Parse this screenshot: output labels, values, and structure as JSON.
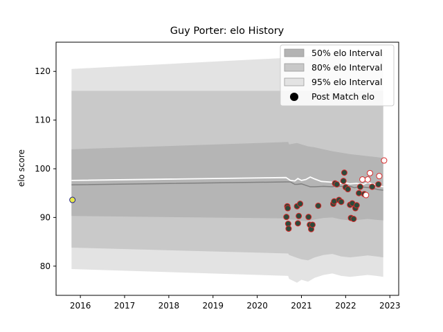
{
  "chart_data": {
    "type": "scatter",
    "title": "Guy Porter: elo History",
    "xlabel": "",
    "ylabel": "elo score",
    "xlim": [
      2015.45,
      2023.2
    ],
    "ylim": [
      74,
      126
    ],
    "x_ticks": [
      2016,
      2017,
      2018,
      2019,
      2020,
      2021,
      2022,
      2023
    ],
    "y_ticks": [
      80,
      90,
      100,
      110,
      120
    ],
    "grid": false,
    "legend_position": "top-right",
    "legend": [
      {
        "label": "50% elo Interval",
        "kind": "patch",
        "color": "#b3b3b3"
      },
      {
        "label": "80% elo Interval",
        "kind": "patch",
        "color": "#c8c8c8"
      },
      {
        "label": "95% elo Interval",
        "kind": "patch",
        "color": "#e3e3e3"
      },
      {
        "label": "Post Match elo",
        "kind": "marker",
        "color": "#000000"
      }
    ],
    "colors": {
      "band95": "#e3e3e3",
      "band80": "#c9c9c9",
      "band50": "#b5b5b5",
      "median_line": "#808080",
      "mean_line": "#ffffff",
      "point_fill": "#2e4a3a",
      "point_edge": "#d62728",
      "first_point_fill": "#e8e84a",
      "first_point_edge": "#1f1f8a",
      "recent_point_fill": "#ffffff"
    },
    "bands": {
      "x": [
        2015.8,
        2020.7,
        2020.72,
        2020.9,
        2021.0,
        2021.15,
        2021.3,
        2021.5,
        2021.7,
        2021.9,
        2022.1,
        2022.3,
        2022.5,
        2022.7,
        2022.85
      ],
      "p95_hi": [
        120.5,
        122.8,
        122.9,
        122.9,
        123.0,
        123.1,
        123.2,
        123.3,
        123.4,
        123.5,
        123.6,
        123.7,
        123.8,
        123.9,
        124.0
      ],
      "p80_hi": [
        116.0,
        116.0,
        116.0,
        116.0,
        116.0,
        116.0,
        116.0,
        116.0,
        116.0,
        116.0,
        116.0,
        116.0,
        116.0,
        116.0,
        116.0
      ],
      "p50_hi": [
        104.0,
        105.5,
        105.0,
        105.3,
        105.0,
        104.6,
        104.4,
        104.0,
        103.6,
        103.3,
        103.0,
        102.8,
        102.6,
        102.4,
        102.2
      ],
      "p50_lo": [
        90.3,
        89.8,
        89.6,
        89.5,
        89.3,
        89.2,
        89.6,
        89.9,
        90.0,
        89.6,
        89.4,
        89.5,
        89.7,
        89.5,
        89.4
      ],
      "p80_lo": [
        83.8,
        82.6,
        82.3,
        81.7,
        81.4,
        81.2,
        81.8,
        82.3,
        82.5,
        82.0,
        81.8,
        82.0,
        82.2,
        82.0,
        81.8
      ],
      "p95_lo": [
        79.4,
        78.0,
        77.4,
        76.6,
        77.2,
        76.8,
        77.6,
        78.2,
        78.5,
        78.0,
        77.8,
        78.0,
        78.2,
        78.0,
        77.8
      ]
    },
    "series": [
      {
        "kind": "median",
        "x": [
          2015.8,
          2020.65,
          2020.75,
          2020.85,
          2020.9,
          2021.0,
          2021.1,
          2021.2,
          2021.3,
          2021.5,
          2021.7,
          2021.8,
          2021.9,
          2022.0,
          2022.1,
          2022.2,
          2022.3,
          2022.45,
          2022.6,
          2022.75,
          2022.85
        ],
        "y": [
          96.7,
          97.3,
          97.3,
          96.8,
          96.8,
          96.9,
          96.6,
          96.3,
          96.3,
          96.4,
          96.3,
          96.5,
          96.4,
          96.3,
          96.4,
          96.1,
          96.3,
          96.2,
          96.0,
          95.7,
          95.6
        ]
      },
      {
        "kind": "mean",
        "x": [
          2015.8,
          2020.65,
          2020.75,
          2020.85,
          2020.92,
          2021.0,
          2021.1,
          2021.2,
          2021.3,
          2021.45,
          2021.6,
          2021.75,
          2021.9,
          2022.0,
          2022.1,
          2022.25,
          2022.4,
          2022.5,
          2022.6,
          2022.75,
          2022.85
        ],
        "y": [
          97.6,
          98.2,
          97.6,
          97.5,
          98.0,
          97.6,
          97.8,
          98.3,
          97.9,
          97.4,
          97.3,
          97.2,
          97.0,
          97.1,
          96.9,
          97.0,
          96.8,
          97.2,
          96.9,
          96.5,
          96.3
        ]
      },
      {
        "kind": "post_match",
        "x": [
          2015.82,
          2020.66,
          2020.68,
          2020.69,
          2020.7,
          2020.71,
          2020.9,
          2020.92,
          2020.94,
          2020.97,
          2021.16,
          2021.19,
          2021.22,
          2021.25,
          2021.38,
          2021.72,
          2021.74,
          2021.76,
          2021.8,
          2021.85,
          2021.9,
          2021.95,
          2021.97,
          2022.0,
          2022.05,
          2022.1,
          2022.12,
          2022.15,
          2022.18,
          2022.22,
          2022.25,
          2022.3,
          2022.33,
          2022.38,
          2022.42,
          2022.46,
          2022.5,
          2022.55,
          2022.6,
          2022.74,
          2022.76,
          2022.87
        ],
        "y": [
          93.6,
          90.1,
          92.3,
          91.9,
          88.7,
          87.7,
          92.3,
          88.8,
          90.3,
          92.8,
          90.1,
          88.5,
          87.6,
          88.5,
          92.4,
          92.8,
          93.3,
          97.0,
          96.8,
          93.6,
          93.2,
          97.5,
          99.2,
          96.2,
          95.8,
          92.6,
          89.9,
          92.9,
          89.7,
          91.9,
          92.5,
          95.0,
          96.3,
          97.8,
          94.8,
          94.6,
          97.8,
          99.1,
          96.3,
          96.8,
          98.5,
          101.7
        ]
      }
    ]
  }
}
